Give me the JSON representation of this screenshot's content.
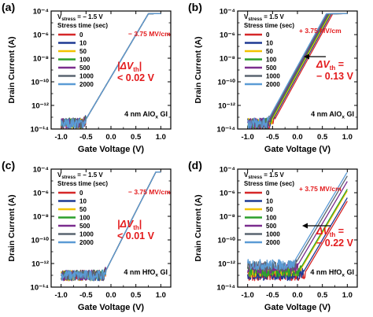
{
  "figure": {
    "y_ticks": [
      "10⁻¹⁴",
      "10⁻¹²",
      "10⁻¹⁰",
      "10⁻⁸",
      "10⁻⁶",
      "10⁻⁴"
    ],
    "x_ticks": [
      "-1.0",
      "-0.5",
      "0.0",
      "0.5",
      "1.0"
    ]
  },
  "chart_data": [
    {
      "panel_label": "(a)",
      "type": "line",
      "xlabel": "Gate Voltage (V)",
      "ylabel": "Drain Current (A)",
      "xlim": [
        -1.2,
        1.2
      ],
      "ylim": [
        1e-14,
        0.0001
      ],
      "y_scale": "log",
      "legend_title": "Stress time (sec)",
      "vstress": {
        "sym": "V",
        "sub": "stress",
        "rest": " = − 1.5 V"
      },
      "field_annotation": "− 3.75 MV/cm",
      "delta_vth": "|ΔV",
      "delta_vth_sub": "th",
      "delta_vth_close": "|",
      "delta_value": "< 0.02 V",
      "device_label": "4 nm AlO",
      "device_sub": "x",
      "device_suffix": " GI",
      "series": [
        {
          "name": "0",
          "color": "#d62728",
          "vth_shift": 0.0,
          "off_current": 3e-14
        },
        {
          "name": "10",
          "color": "#1f3a93",
          "vth_shift": 0.0,
          "off_current": 3e-14
        },
        {
          "name": "50",
          "color": "#f2c300",
          "vth_shift": 0.0,
          "off_current": 3e-14
        },
        {
          "name": "100",
          "color": "#2ca02c",
          "vth_shift": 0.0,
          "off_current": 3e-14
        },
        {
          "name": "500",
          "color": "#7b2d8e",
          "vth_shift": 0.0,
          "off_current": 3e-14
        },
        {
          "name": "1000",
          "color": "#5a6570",
          "vth_shift": 0.0,
          "off_current": 3e-14
        },
        {
          "name": "2000",
          "color": "#5b9bd5",
          "vth_shift": 0.0,
          "off_current": 3e-14
        }
      ],
      "model": {
        "vth": -0.55,
        "ss": 0.14,
        "ion": 6e-05,
        "vsat": 0.6
      }
    },
    {
      "panel_label": "(b)",
      "type": "line",
      "xlabel": "Gate Voltage (V)",
      "ylabel": "Drain Current (A)",
      "xlim": [
        -1.2,
        1.2
      ],
      "ylim": [
        1e-14,
        0.0001
      ],
      "y_scale": "log",
      "legend_title": "Stress time (sec)",
      "vstress": {
        "sym": "V",
        "sub": "stress",
        "rest": " = 1.5 V"
      },
      "field_annotation": "+ 3.75 MV/cm",
      "delta_vth": "ΔV",
      "delta_vth_sub": "th",
      "delta_vth_close": " =",
      "delta_value": "− 0.13 V",
      "device_label": "4 nm AlO",
      "device_sub": "x",
      "device_suffix": " GI",
      "series": [
        {
          "name": "0",
          "color": "#d62728",
          "vth_shift": 0.0,
          "off_current": 3e-14
        },
        {
          "name": "10",
          "color": "#1f3a93",
          "vth_shift": -0.03,
          "off_current": 3e-14
        },
        {
          "name": "50",
          "color": "#f2c300",
          "vth_shift": -0.05,
          "off_current": 3e-14
        },
        {
          "name": "100",
          "color": "#2ca02c",
          "vth_shift": -0.07,
          "off_current": 3e-14
        },
        {
          "name": "500",
          "color": "#7b2d8e",
          "vth_shift": -0.09,
          "off_current": 3e-14
        },
        {
          "name": "1000",
          "color": "#5a6570",
          "vth_shift": -0.11,
          "off_current": 3e-14
        },
        {
          "name": "2000",
          "color": "#5b9bd5",
          "vth_shift": -0.13,
          "off_current": 3e-14
        }
      ],
      "model": {
        "vth": -0.5,
        "ss": 0.13,
        "ion": 6e-05,
        "vsat": 0.6
      }
    },
    {
      "panel_label": "(c)",
      "type": "line",
      "xlabel": "Gate Voltage (V)",
      "ylabel": "Drain Current (A)",
      "xlim": [
        -1.2,
        1.2
      ],
      "ylim": [
        1e-14,
        0.0001
      ],
      "y_scale": "log",
      "legend_title": "Stress time (sec)",
      "vstress": {
        "sym": "V",
        "sub": "stress",
        "rest": " = − 1.5 V"
      },
      "field_annotation": "− 3.75 MV/cm",
      "delta_vth": "|ΔV",
      "delta_vth_sub": "th",
      "delta_vth_close": "|",
      "delta_value": "< 0.01 V",
      "device_label": "4 nm HfO",
      "device_sub": "x",
      "device_suffix": " GI",
      "series": [
        {
          "name": "0",
          "color": "#d62728",
          "vth_shift": 0.0,
          "off_current": 1e-13
        },
        {
          "name": "10",
          "color": "#1f3a93",
          "vth_shift": 0.0,
          "off_current": 1e-13
        },
        {
          "name": "50",
          "color": "#f2c300",
          "vth_shift": 0.0,
          "off_current": 1e-13
        },
        {
          "name": "100",
          "color": "#2ca02c",
          "vth_shift": 0.0,
          "off_current": 1e-13
        },
        {
          "name": "500",
          "color": "#7b2d8e",
          "vth_shift": 0.0,
          "off_current": 1e-13
        },
        {
          "name": "1000",
          "color": "#5a6570",
          "vth_shift": 0.0,
          "off_current": 1e-13
        },
        {
          "name": "2000",
          "color": "#5b9bd5",
          "vth_shift": 0.0,
          "off_current": 1e-13
        }
      ],
      "model": {
        "vth": -0.15,
        "ss": 0.12,
        "ion": 6e-05,
        "vsat": 0.65
      }
    },
    {
      "panel_label": "(d)",
      "type": "line",
      "xlabel": "Gate Voltage (V)",
      "ylabel": "Drain Current (A)",
      "xlim": [
        -1.2,
        1.2
      ],
      "ylim": [
        1e-14,
        0.0001
      ],
      "y_scale": "log",
      "legend_title": "Stress time (sec)",
      "vstress": {
        "sym": "V",
        "sub": "stress",
        "rest": " = 1.5 V"
      },
      "field_annotation": "+ 3.75 MV/cm",
      "delta_vth": "ΔV",
      "delta_vth_sub": "th",
      "delta_vth_close": " =",
      "delta_value": "− 0.22 V",
      "device_label": "4 nm HfO",
      "device_sub": "x",
      "device_suffix": " GI",
      "series": [
        {
          "name": "0",
          "color": "#d62728",
          "vth_shift": 0.0,
          "off_current": 1e-13
        },
        {
          "name": "10",
          "color": "#1f3a93",
          "vth_shift": -0.04,
          "off_current": 1e-13
        },
        {
          "name": "50",
          "color": "#f2c300",
          "vth_shift": -0.08,
          "off_current": 2e-13
        },
        {
          "name": "100",
          "color": "#2ca02c",
          "vth_shift": -0.1,
          "off_current": 2e-13
        },
        {
          "name": "500",
          "color": "#7b2d8e",
          "vth_shift": -0.15,
          "off_current": 4e-13
        },
        {
          "name": "1000",
          "color": "#5a6570",
          "vth_shift": -0.19,
          "off_current": 6e-13
        },
        {
          "name": "2000",
          "color": "#5b9bd5",
          "vth_shift": -0.22,
          "off_current": 8e-13
        }
      ],
      "model": {
        "vth": 0.12,
        "ss": 0.14,
        "ion": 5e-05,
        "vsat": 0.75
      }
    }
  ]
}
